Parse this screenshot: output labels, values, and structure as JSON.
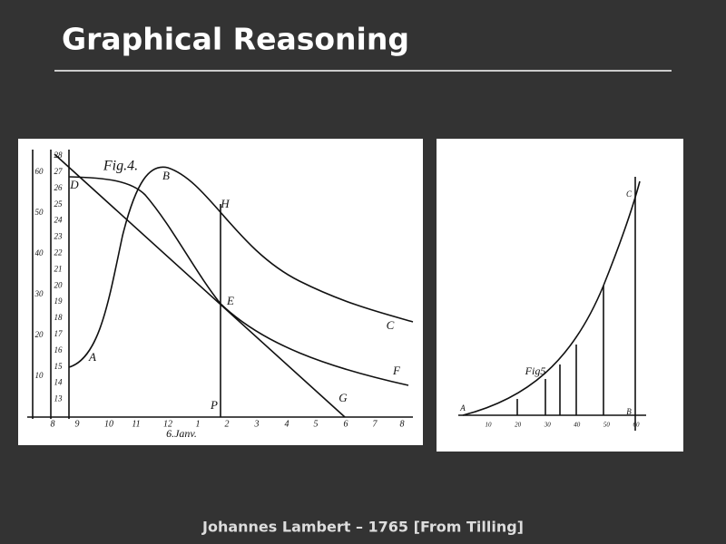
{
  "header": {
    "title": "Graphical Reasoning"
  },
  "figures": [
    {
      "caption": "Fig.4.",
      "date_label": "6.Janv.",
      "point_labels": [
        "A",
        "B",
        "C",
        "D",
        "E",
        "F",
        "G",
        "H",
        "P"
      ],
      "outer_scale": [
        "60",
        "50",
        "40",
        "30",
        "20",
        "10"
      ],
      "inner_scale": [
        "28",
        "27",
        "26",
        "25",
        "24",
        "23",
        "22",
        "21",
        "20",
        "19",
        "18",
        "17",
        "16",
        "15",
        "14",
        "13"
      ],
      "bottom_scale": [
        "8",
        "9",
        "10",
        "11",
        "12",
        "1",
        "2",
        "3",
        "4",
        "5",
        "6",
        "7",
        "8"
      ]
    },
    {
      "caption": "Fig5",
      "point_labels": [
        "A",
        "B",
        "C"
      ],
      "bottom_scale": [
        "10",
        "20",
        "30",
        "40",
        "50",
        "60"
      ]
    }
  ],
  "footer": {
    "credit": "Johannes Lambert – 1765 [From Tilling]"
  }
}
